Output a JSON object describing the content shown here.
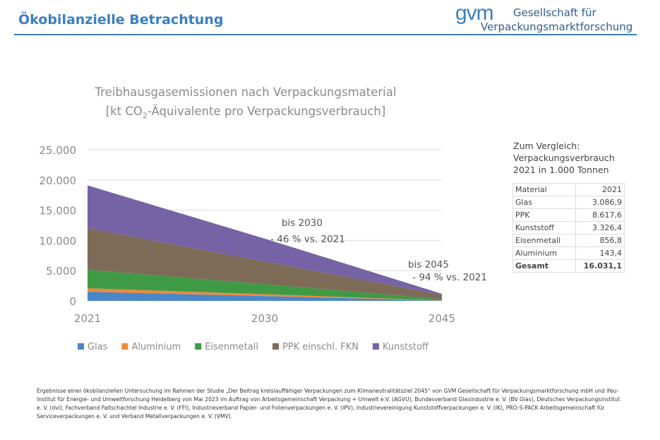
{
  "header": {
    "title": "Ökobilanzielle Betrachtung",
    "logo": "gvm",
    "org_line1": "Gesellschaft für",
    "org_line2": "Verpackungsmarktforschung",
    "accent": "#3a7fc1"
  },
  "chart_data": {
    "type": "area",
    "stacked": true,
    "title_line1": "Treibhausgasemissionen nach Verpackungsmaterial",
    "title_line2_pre": "[kt CO",
    "title_line2_sub": "2",
    "title_line2_post": "-Äquivalente pro Verpackungsverbrauch]",
    "categories": [
      "2021",
      "2030",
      "2045"
    ],
    "ylim": [
      0,
      25000
    ],
    "yticks": [
      "0",
      "5.000",
      "10.000",
      "15.000",
      "20.000",
      "25.000"
    ],
    "grid": true,
    "legend": "bottom",
    "series": [
      {
        "name": "Glas",
        "color": "#4a86c8",
        "values": [
          1500,
          800,
          50
        ]
      },
      {
        "name": "Aluminium",
        "color": "#ed8a3c",
        "values": [
          580,
          310,
          20
        ]
      },
      {
        "name": "Eisenmetall",
        "color": "#3f9a45",
        "values": [
          3050,
          1650,
          200
        ]
      },
      {
        "name": "PPK einschl. FKN",
        "color": "#7d6b58",
        "values": [
          6920,
          3740,
          750
        ]
      },
      {
        "name": "Kunststoff",
        "color": "#7563a6",
        "values": [
          7050,
          3800,
          150
        ]
      }
    ],
    "annotations": [
      {
        "line1": "bis 2030",
        "line2": "- 46 % vs. 2021"
      },
      {
        "line1": "bis 2045",
        "line2": "- 94 % vs. 2021"
      }
    ]
  },
  "comparison": {
    "line1": "Zum Vergleich:",
    "line2": "Verpackungsverbrauch",
    "line3": "2021 in 1.000 Tonnen",
    "header": [
      "Material",
      "2021"
    ],
    "rows": [
      [
        "Glas",
        "3.086,9"
      ],
      [
        "PPK",
        "8.617,6"
      ],
      [
        "Kunststoff",
        "3.326,4"
      ],
      [
        "Eisenmetall",
        "856,8"
      ],
      [
        "Aluminium",
        "143,4"
      ]
    ],
    "total": [
      "Gesamt",
      "16.031,1"
    ]
  },
  "footnote": "Ergebnisse einer ökobilanziellen Untersuchung im Rahmen der Studie „Der Beitrag kreislauffähiger Verpackungen zum Klimaneutralitätsziel 2045“ von GVM Gesellschaft für Verpackungsmarktforschung mbH und ifeu-Institut für Energie- und Umweltforschung Heidelberg von Mai 2023 im Auftrag von Arbeitsgemeinschaft Verpackung + Umwelt e.V. (AGVU), Bundesverband Glasindustrie e. V. (BV Glas), Deutsches Verpackungsinstitut e. V. (dvi), Fachverband Faltschachtel Industrie e. V. (FFI), Industrieverband Papier- und Folienverpackungen e. V. (IPV), Industrievereinigung Kunststoffverpackungen e. V. (IK), PRO-S-PACK Arbeitsgemeinschaft für Serviceverpackungen e. V. und Verband Metallverpackungen e. V. (VMV)."
}
